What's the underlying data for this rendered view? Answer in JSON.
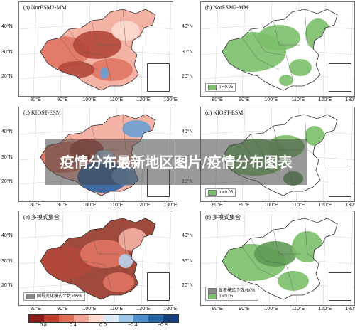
{
  "panels": [
    {
      "id": "a",
      "title": "(a) NorESM2-MM",
      "legend": []
    },
    {
      "id": "b",
      "title": "(b) NorESM2-MM",
      "legend": [
        {
          "label": "p <0.05",
          "color": "#7bbf6a"
        }
      ]
    },
    {
      "id": "c",
      "title": "(c) KIOST-ESM",
      "legend": []
    },
    {
      "id": "d",
      "title": "(d) KIOST-ESM",
      "legend": [
        {
          "label": "p <0.05",
          "color": "#7bbf6a"
        }
      ]
    },
    {
      "id": "e",
      "title": "(e) 多模式集合",
      "legend": [
        {
          "label": "同号变化模式个数>95%",
          "color": "#8a8a8a"
        }
      ]
    },
    {
      "id": "f",
      "title": "(f) 多模式集合",
      "legend": [
        {
          "label": "显著模式个数>80%",
          "color": "#8a8a8a"
        },
        {
          "label": "p <0.05",
          "color": "#7bbf6a"
        }
      ]
    }
  ],
  "latitude_ticks": [
    "40°N",
    "30°N",
    "20°N"
  ],
  "longitude_ticks": [
    "80°E",
    "90°E",
    "100°E",
    "110°E",
    "120°E",
    "130°E"
  ],
  "overlay": {
    "text": "疫情分布最新地区图片/疫情分布图表"
  },
  "colorbar": {
    "ticks": [
      "0.8",
      "0.4",
      "0.0",
      "−0.4",
      "−0.8"
    ],
    "colors": [
      "#8b1a1a",
      "#c0392b",
      "#e06a55",
      "#f2a592",
      "#fbd9cf",
      "#d9e8f5",
      "#9cc5e6",
      "#4f8fc9",
      "#2463a6",
      "#123f7a"
    ]
  },
  "colors": {
    "red_dark": "#b3473a",
    "red_mid": "#e07463",
    "red_light": "#f4b2a4",
    "blue_dark": "#2e63a3",
    "blue_mid": "#6b9fd3",
    "blue_light": "#b9d3ee",
    "green": "#7bbf6a",
    "green_dark": "#5f9a55",
    "ensemble_dark": "#9f4a3c"
  }
}
